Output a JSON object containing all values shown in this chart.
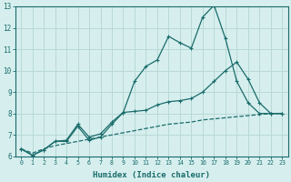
{
  "xlabel": "Humidex (Indice chaleur)",
  "bg_color": "#d6efee",
  "grid_color": "#b8d8d6",
  "line_color": "#1a6b6b",
  "xlim": [
    -0.5,
    23.5
  ],
  "ylim": [
    6,
    13
  ],
  "xticks": [
    0,
    1,
    2,
    3,
    4,
    5,
    6,
    7,
    8,
    9,
    10,
    11,
    12,
    13,
    14,
    15,
    16,
    17,
    18,
    19,
    20,
    21,
    22,
    23
  ],
  "yticks": [
    6,
    7,
    8,
    9,
    10,
    11,
    12,
    13
  ],
  "line1_x": [
    0,
    1,
    2,
    3,
    4,
    5,
    6,
    7,
    8,
    9,
    10,
    11,
    12,
    13,
    14,
    15,
    16,
    17,
    18,
    19,
    20,
    21,
    22,
    23
  ],
  "line1_y": [
    6.35,
    6.05,
    6.3,
    6.7,
    6.75,
    7.5,
    6.9,
    7.05,
    7.6,
    8.05,
    9.5,
    10.2,
    10.5,
    11.6,
    11.3,
    11.05,
    12.5,
    13.05,
    11.5,
    9.5,
    8.5,
    8.0,
    8.0,
    8.0
  ],
  "line2_x": [
    0,
    1,
    2,
    3,
    4,
    5,
    6,
    7,
    8,
    9,
    10,
    11,
    12,
    13,
    14,
    15,
    16,
    17,
    18,
    19,
    20,
    21,
    22,
    23
  ],
  "line2_y": [
    6.35,
    6.05,
    6.3,
    6.7,
    6.7,
    7.4,
    6.75,
    6.9,
    7.5,
    8.05,
    8.1,
    8.15,
    8.4,
    8.55,
    8.6,
    8.7,
    9.0,
    9.5,
    10.0,
    10.4,
    9.6,
    8.5,
    8.0,
    8.0
  ],
  "line3_x": [
    0,
    1,
    2,
    3,
    4,
    5,
    6,
    7,
    8,
    9,
    10,
    11,
    12,
    13,
    14,
    15,
    16,
    17,
    18,
    19,
    20,
    21,
    22,
    23
  ],
  "line3_y": [
    6.35,
    6.15,
    6.35,
    6.5,
    6.6,
    6.7,
    6.8,
    6.9,
    7.0,
    7.1,
    7.2,
    7.3,
    7.4,
    7.5,
    7.55,
    7.6,
    7.7,
    7.75,
    7.8,
    7.85,
    7.9,
    7.95,
    8.0,
    8.0
  ]
}
